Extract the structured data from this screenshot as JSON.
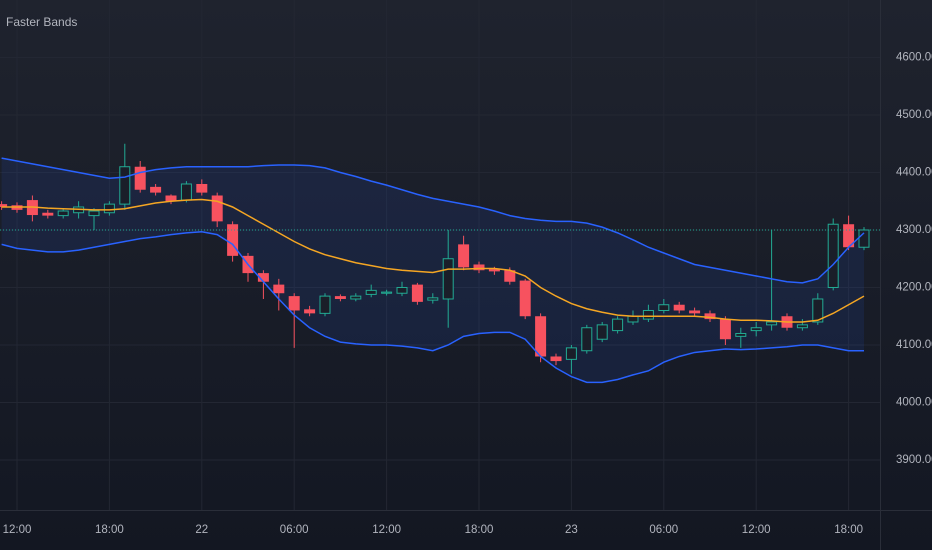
{
  "chart_data": {
    "type": "candlestick",
    "title": "Faster Bands",
    "categories": [
      null,
      "12:00",
      null,
      null,
      null,
      null,
      null,
      "18:00",
      null,
      null,
      null,
      null,
      null,
      "22",
      null,
      null,
      null,
      null,
      null,
      "06:00",
      null,
      null,
      null,
      null,
      null,
      "12:00",
      null,
      null,
      null,
      null,
      null,
      "18:00",
      null,
      null,
      null,
      null,
      null,
      "23",
      null,
      null,
      null,
      null,
      null,
      "06:00",
      null,
      null,
      null,
      null,
      null,
      "12:00",
      null,
      null,
      null,
      null,
      null,
      "18:00",
      null
    ],
    "open": [
      4345,
      4343,
      4352,
      4330,
      4325,
      4330,
      4325,
      4330,
      4345,
      4410,
      4375,
      4360,
      4352,
      4380,
      4360,
      4310,
      4255,
      4225,
      4205,
      4185,
      4162,
      4155,
      4185,
      4180,
      4188,
      4190,
      4190,
      4205,
      4178,
      4180,
      4275,
      4240,
      4232,
      4230,
      4212,
      4150,
      4080,
      4075,
      4090,
      4110,
      4125,
      4140,
      4145,
      4160,
      4170,
      4160,
      4155,
      4145,
      4115,
      4125,
      4135,
      4150,
      4130,
      4140,
      4200,
      4310,
      4270
    ],
    "high": [
      4350,
      4348,
      4360,
      4335,
      4338,
      4350,
      4338,
      4350,
      4450,
      4420,
      4380,
      4362,
      4385,
      4388,
      4365,
      4315,
      4260,
      4230,
      4215,
      4190,
      4168,
      4190,
      4188,
      4190,
      4205,
      4196,
      4210,
      4208,
      4190,
      4300,
      4290,
      4245,
      4236,
      4235,
      4215,
      4155,
      4085,
      4100,
      4135,
      4140,
      4150,
      4160,
      4170,
      4180,
      4175,
      4165,
      4160,
      4150,
      4130,
      4140,
      4300,
      4155,
      4145,
      4190,
      4320,
      4325,
      4305
    ],
    "low": [
      4335,
      4330,
      4315,
      4320,
      4320,
      4320,
      4300,
      4325,
      4335,
      4365,
      4360,
      4345,
      4348,
      4360,
      4305,
      4245,
      4210,
      4180,
      4160,
      4095,
      4150,
      4150,
      4176,
      4176,
      4183,
      4186,
      4185,
      4170,
      4172,
      4130,
      4230,
      4225,
      4222,
      4205,
      4145,
      4070,
      4065,
      4050,
      4085,
      4105,
      4120,
      4135,
      4140,
      4155,
      4155,
      4150,
      4140,
      4100,
      4095,
      4115,
      4125,
      4125,
      4125,
      4135,
      4195,
      4265,
      4265
    ],
    "close": [
      4340,
      4335,
      4326,
      4325,
      4333,
      4340,
      4333,
      4345,
      4410,
      4370,
      4365,
      4350,
      4380,
      4365,
      4315,
      4255,
      4225,
      4210,
      4190,
      4160,
      4155,
      4185,
      4180,
      4185,
      4195,
      4192,
      4200,
      4175,
      4182,
      4250,
      4235,
      4230,
      4228,
      4210,
      4150,
      4080,
      4072,
      4095,
      4130,
      4135,
      4145,
      4150,
      4160,
      4170,
      4160,
      4155,
      4145,
      4110,
      4120,
      4130,
      4140,
      4130,
      4135,
      4180,
      4310,
      4270,
      4300
    ],
    "upper": [
      4425,
      4420,
      4415,
      4410,
      4405,
      4400,
      4395,
      4390,
      4392,
      4400,
      4405,
      4408,
      4410,
      4410,
      4410,
      4410,
      4410,
      4412,
      4413,
      4413,
      4412,
      4408,
      4400,
      4393,
      4385,
      4378,
      4370,
      4362,
      4355,
      4350,
      4345,
      4340,
      4333,
      4325,
      4320,
      4317,
      4315,
      4315,
      4312,
      4305,
      4295,
      4283,
      4270,
      4260,
      4250,
      4240,
      4235,
      4230,
      4225,
      4220,
      4215,
      4210,
      4208,
      4215,
      4240,
      4270,
      4295
    ],
    "middle": [
      4340,
      4340,
      4340,
      4338,
      4337,
      4336,
      4335,
      4335,
      4337,
      4342,
      4347,
      4350,
      4352,
      4353,
      4350,
      4340,
      4325,
      4310,
      4295,
      4280,
      4267,
      4257,
      4250,
      4243,
      4238,
      4233,
      4230,
      4228,
      4226,
      4232,
      4232,
      4233,
      4233,
      4230,
      4220,
      4200,
      4185,
      4172,
      4163,
      4157,
      4152,
      4150,
      4150,
      4150,
      4150,
      4150,
      4148,
      4145,
      4143,
      4143,
      4142,
      4140,
      4140,
      4143,
      4155,
      4170,
      4185
    ],
    "lower": [
      4275,
      4268,
      4265,
      4262,
      4262,
      4265,
      4270,
      4275,
      4280,
      4285,
      4288,
      4292,
      4295,
      4297,
      4292,
      4275,
      4240,
      4210,
      4180,
      4152,
      4130,
      4115,
      4105,
      4102,
      4100,
      4100,
      4098,
      4095,
      4090,
      4100,
      4115,
      4120,
      4122,
      4122,
      4110,
      4080,
      4060,
      4045,
      4035,
      4035,
      4040,
      4048,
      4055,
      4070,
      4080,
      4087,
      4090,
      4093,
      4092,
      4093,
      4095,
      4097,
      4100,
      4100,
      4095,
      4090,
      4090
    ],
    "up_color": "#22ab94",
    "down_color": "#f7525f",
    "band_color": "#2962ff",
    "middle_color": "#f5a623",
    "fill_color": "#2962ff",
    "ylim": [
      3813,
      4700
    ],
    "yticks": [
      {
        "value": 3900,
        "label": "3900.00"
      },
      {
        "value": 4000,
        "label": "4000.00"
      },
      {
        "value": 4100,
        "label": "4100.00"
      },
      {
        "value": 4200,
        "label": "4200.00"
      },
      {
        "value": 4300,
        "label": "4300.00"
      },
      {
        "value": 4400,
        "label": "4400.00"
      },
      {
        "value": 4500,
        "label": "4500.00"
      },
      {
        "value": 4600,
        "label": "4600.00"
      }
    ],
    "grid": true
  }
}
